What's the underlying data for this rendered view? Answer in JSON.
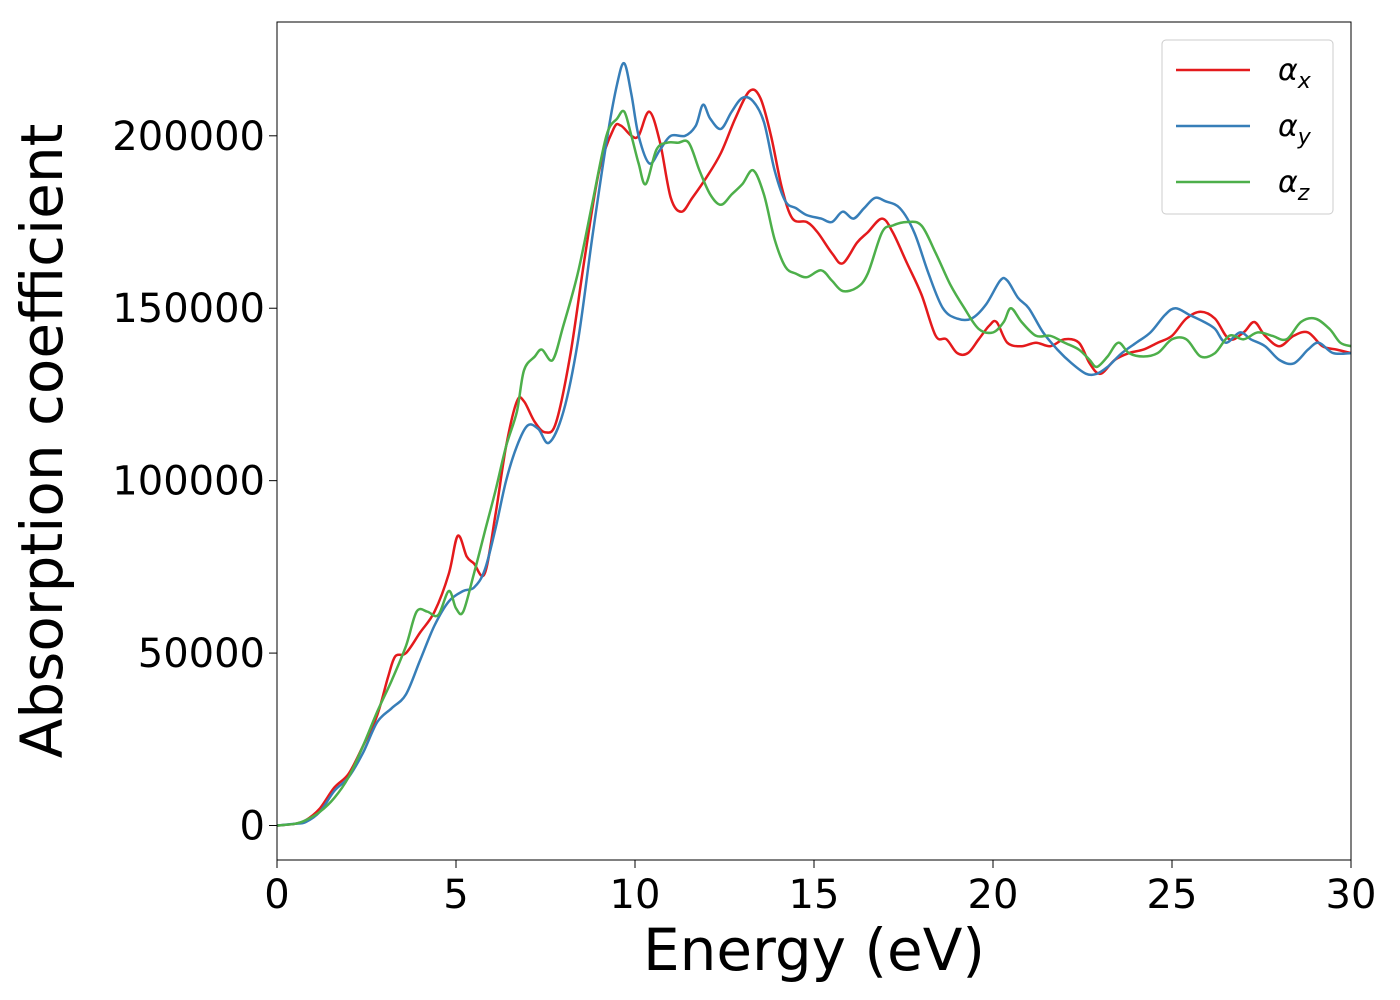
{
  "chart_data": {
    "type": "line",
    "title": "",
    "xlabel": "Energy (eV)",
    "ylabel": "Absorption coefficient",
    "xlim": [
      0,
      30
    ],
    "ylim": [
      -10000,
      233000
    ],
    "xticks": [
      0,
      5,
      10,
      15,
      20,
      25,
      30
    ],
    "xtick_labels": [
      "0",
      "5",
      "10",
      "15",
      "20",
      "25",
      "30"
    ],
    "yticks": [
      0,
      50000,
      100000,
      150000,
      200000
    ],
    "ytick_labels": [
      "0",
      "50000",
      "100000",
      "150000",
      "200000"
    ],
    "grid": false,
    "legend_position": "top-right",
    "series": [
      {
        "name": "αx",
        "symbol": "α",
        "subscript": "x",
        "color": "#e41a1c",
        "points": [
          [
            0,
            0
          ],
          [
            0.5,
            500
          ],
          [
            0.8,
            1500
          ],
          [
            1.2,
            5000
          ],
          [
            1.6,
            11000
          ],
          [
            2.0,
            15000
          ],
          [
            2.4,
            23000
          ],
          [
            2.8,
            32000
          ],
          [
            3.1,
            43000
          ],
          [
            3.3,
            49000
          ],
          [
            3.6,
            50000
          ],
          [
            4.0,
            56000
          ],
          [
            4.4,
            62000
          ],
          [
            4.8,
            73000
          ],
          [
            5.05,
            84000
          ],
          [
            5.3,
            78000
          ],
          [
            5.5,
            76000
          ],
          [
            5.8,
            73000
          ],
          [
            6.1,
            90000
          ],
          [
            6.4,
            110000
          ],
          [
            6.7,
            123000
          ],
          [
            6.9,
            123000
          ],
          [
            7.2,
            117000
          ],
          [
            7.5,
            114000
          ],
          [
            7.8,
            117000
          ],
          [
            8.2,
            137000
          ],
          [
            8.6,
            165000
          ],
          [
            9.0,
            190000
          ],
          [
            9.4,
            202000
          ],
          [
            9.6,
            203000
          ],
          [
            9.9,
            200000
          ],
          [
            10.1,
            200000
          ],
          [
            10.4,
            207000
          ],
          [
            10.7,
            198000
          ],
          [
            11.0,
            182000
          ],
          [
            11.3,
            178000
          ],
          [
            11.6,
            182000
          ],
          [
            12.0,
            188000
          ],
          [
            12.4,
            195000
          ],
          [
            12.8,
            205000
          ],
          [
            13.2,
            213000
          ],
          [
            13.5,
            211000
          ],
          [
            13.8,
            200000
          ],
          [
            14.1,
            185000
          ],
          [
            14.4,
            176000
          ],
          [
            14.8,
            175000
          ],
          [
            15.1,
            172000
          ],
          [
            15.5,
            166000
          ],
          [
            15.8,
            163000
          ],
          [
            16.2,
            169000
          ],
          [
            16.5,
            172000
          ],
          [
            16.9,
            176000
          ],
          [
            17.2,
            172000
          ],
          [
            17.6,
            163000
          ],
          [
            18.0,
            154000
          ],
          [
            18.4,
            142000
          ],
          [
            18.7,
            141000
          ],
          [
            19.0,
            137000
          ],
          [
            19.3,
            137000
          ],
          [
            19.6,
            141000
          ],
          [
            19.9,
            145000
          ],
          [
            20.1,
            146000
          ],
          [
            20.4,
            140000
          ],
          [
            20.8,
            139000
          ],
          [
            21.2,
            140000
          ],
          [
            21.6,
            139000
          ],
          [
            22.0,
            141000
          ],
          [
            22.4,
            140000
          ],
          [
            22.7,
            134000
          ],
          [
            23.0,
            131000
          ],
          [
            23.4,
            135000
          ],
          [
            23.8,
            137000
          ],
          [
            24.2,
            138000
          ],
          [
            24.6,
            140000
          ],
          [
            25.0,
            142000
          ],
          [
            25.4,
            147000
          ],
          [
            25.8,
            149000
          ],
          [
            26.2,
            147000
          ],
          [
            26.6,
            141000
          ],
          [
            27.0,
            143000
          ],
          [
            27.3,
            146000
          ],
          [
            27.6,
            142000
          ],
          [
            28.0,
            139000
          ],
          [
            28.4,
            142000
          ],
          [
            28.8,
            143000
          ],
          [
            29.2,
            139000
          ],
          [
            29.6,
            138000
          ],
          [
            30.0,
            137000
          ]
        ]
      },
      {
        "name": "αy",
        "symbol": "α",
        "subscript": "y",
        "color": "#377eb8",
        "points": [
          [
            0,
            0
          ],
          [
            0.5,
            500
          ],
          [
            0.8,
            1000
          ],
          [
            1.2,
            4000
          ],
          [
            1.6,
            10000
          ],
          [
            2.0,
            14000
          ],
          [
            2.4,
            21000
          ],
          [
            2.8,
            30000
          ],
          [
            3.2,
            34000
          ],
          [
            3.6,
            38000
          ],
          [
            4.0,
            48000
          ],
          [
            4.4,
            58000
          ],
          [
            4.8,
            65000
          ],
          [
            5.2,
            68000
          ],
          [
            5.5,
            69000
          ],
          [
            5.8,
            74000
          ],
          [
            6.1,
            86000
          ],
          [
            6.4,
            100000
          ],
          [
            6.7,
            110000
          ],
          [
            7.0,
            116000
          ],
          [
            7.3,
            115000
          ],
          [
            7.6,
            111000
          ],
          [
            8.0,
            120000
          ],
          [
            8.4,
            140000
          ],
          [
            8.8,
            170000
          ],
          [
            9.2,
            198000
          ],
          [
            9.5,
            215000
          ],
          [
            9.7,
            221000
          ],
          [
            9.9,
            212000
          ],
          [
            10.1,
            200000
          ],
          [
            10.4,
            192000
          ],
          [
            10.7,
            196000
          ],
          [
            11.0,
            200000
          ],
          [
            11.4,
            200000
          ],
          [
            11.7,
            203000
          ],
          [
            11.9,
            209000
          ],
          [
            12.1,
            205000
          ],
          [
            12.4,
            202000
          ],
          [
            12.7,
            207000
          ],
          [
            13.0,
            211000
          ],
          [
            13.3,
            210000
          ],
          [
            13.6,
            204000
          ],
          [
            13.9,
            190000
          ],
          [
            14.2,
            181000
          ],
          [
            14.5,
            179000
          ],
          [
            14.8,
            177000
          ],
          [
            15.2,
            176000
          ],
          [
            15.5,
            175000
          ],
          [
            15.8,
            178000
          ],
          [
            16.1,
            176000
          ],
          [
            16.4,
            179000
          ],
          [
            16.7,
            182000
          ],
          [
            17.0,
            181000
          ],
          [
            17.4,
            179000
          ],
          [
            17.8,
            172000
          ],
          [
            18.2,
            160000
          ],
          [
            18.6,
            150000
          ],
          [
            19.0,
            147000
          ],
          [
            19.4,
            147000
          ],
          [
            19.8,
            151000
          ],
          [
            20.2,
            158000
          ],
          [
            20.4,
            158000
          ],
          [
            20.7,
            153000
          ],
          [
            21.0,
            150000
          ],
          [
            21.4,
            143000
          ],
          [
            21.8,
            138000
          ],
          [
            22.2,
            134000
          ],
          [
            22.6,
            131000
          ],
          [
            22.9,
            131000
          ],
          [
            23.2,
            133000
          ],
          [
            23.6,
            137000
          ],
          [
            24.0,
            140000
          ],
          [
            24.4,
            143000
          ],
          [
            24.8,
            148000
          ],
          [
            25.1,
            150000
          ],
          [
            25.5,
            148000
          ],
          [
            25.9,
            146000
          ],
          [
            26.2,
            144000
          ],
          [
            26.5,
            140000
          ],
          [
            26.9,
            143000
          ],
          [
            27.2,
            141000
          ],
          [
            27.6,
            139000
          ],
          [
            28.0,
            135000
          ],
          [
            28.4,
            134000
          ],
          [
            28.8,
            138000
          ],
          [
            29.1,
            140000
          ],
          [
            29.5,
            137000
          ],
          [
            30.0,
            137000
          ]
        ]
      },
      {
        "name": "αz",
        "symbol": "α",
        "subscript": "z",
        "color": "#4daf4a",
        "points": [
          [
            0,
            0
          ],
          [
            0.5,
            500
          ],
          [
            0.8,
            1500
          ],
          [
            1.2,
            4000
          ],
          [
            1.6,
            8000
          ],
          [
            2.0,
            14000
          ],
          [
            2.4,
            23000
          ],
          [
            2.8,
            33000
          ],
          [
            3.2,
            42000
          ],
          [
            3.6,
            52000
          ],
          [
            3.9,
            62000
          ],
          [
            4.2,
            62000
          ],
          [
            4.5,
            61000
          ],
          [
            4.8,
            68000
          ],
          [
            5.0,
            63000
          ],
          [
            5.2,
            62000
          ],
          [
            5.5,
            73000
          ],
          [
            5.8,
            85000
          ],
          [
            6.1,
            97000
          ],
          [
            6.4,
            110000
          ],
          [
            6.7,
            120000
          ],
          [
            6.9,
            132000
          ],
          [
            7.2,
            136000
          ],
          [
            7.4,
            138000
          ],
          [
            7.7,
            135000
          ],
          [
            8.0,
            145000
          ],
          [
            8.4,
            160000
          ],
          [
            8.8,
            180000
          ],
          [
            9.2,
            200000
          ],
          [
            9.5,
            205000
          ],
          [
            9.7,
            207000
          ],
          [
            9.9,
            200000
          ],
          [
            10.1,
            192000
          ],
          [
            10.3,
            186000
          ],
          [
            10.6,
            196000
          ],
          [
            10.9,
            198000
          ],
          [
            11.2,
            198000
          ],
          [
            11.5,
            198000
          ],
          [
            11.8,
            190000
          ],
          [
            12.1,
            183000
          ],
          [
            12.4,
            180000
          ],
          [
            12.7,
            183000
          ],
          [
            13.0,
            186000
          ],
          [
            13.3,
            190000
          ],
          [
            13.6,
            183000
          ],
          [
            13.9,
            170000
          ],
          [
            14.2,
            162000
          ],
          [
            14.5,
            160000
          ],
          [
            14.8,
            159000
          ],
          [
            15.2,
            161000
          ],
          [
            15.5,
            158000
          ],
          [
            15.8,
            155000
          ],
          [
            16.2,
            156000
          ],
          [
            16.5,
            160000
          ],
          [
            16.9,
            172000
          ],
          [
            17.2,
            174000
          ],
          [
            17.6,
            175000
          ],
          [
            18.0,
            174000
          ],
          [
            18.4,
            166000
          ],
          [
            18.8,
            157000
          ],
          [
            19.2,
            150000
          ],
          [
            19.6,
            144000
          ],
          [
            20.0,
            143000
          ],
          [
            20.3,
            146000
          ],
          [
            20.5,
            150000
          ],
          [
            20.8,
            146000
          ],
          [
            21.2,
            142000
          ],
          [
            21.6,
            142000
          ],
          [
            22.0,
            140000
          ],
          [
            22.4,
            138000
          ],
          [
            22.7,
            135000
          ],
          [
            22.9,
            133000
          ],
          [
            23.2,
            136000
          ],
          [
            23.5,
            140000
          ],
          [
            23.8,
            137000
          ],
          [
            24.2,
            136000
          ],
          [
            24.6,
            137000
          ],
          [
            25.0,
            141000
          ],
          [
            25.4,
            141000
          ],
          [
            25.8,
            136000
          ],
          [
            26.2,
            137000
          ],
          [
            26.6,
            142000
          ],
          [
            27.0,
            141000
          ],
          [
            27.4,
            143000
          ],
          [
            27.8,
            142000
          ],
          [
            28.2,
            141000
          ],
          [
            28.6,
            146000
          ],
          [
            29.0,
            147000
          ],
          [
            29.4,
            144000
          ],
          [
            29.7,
            140000
          ],
          [
            30.0,
            139000
          ]
        ]
      }
    ]
  }
}
